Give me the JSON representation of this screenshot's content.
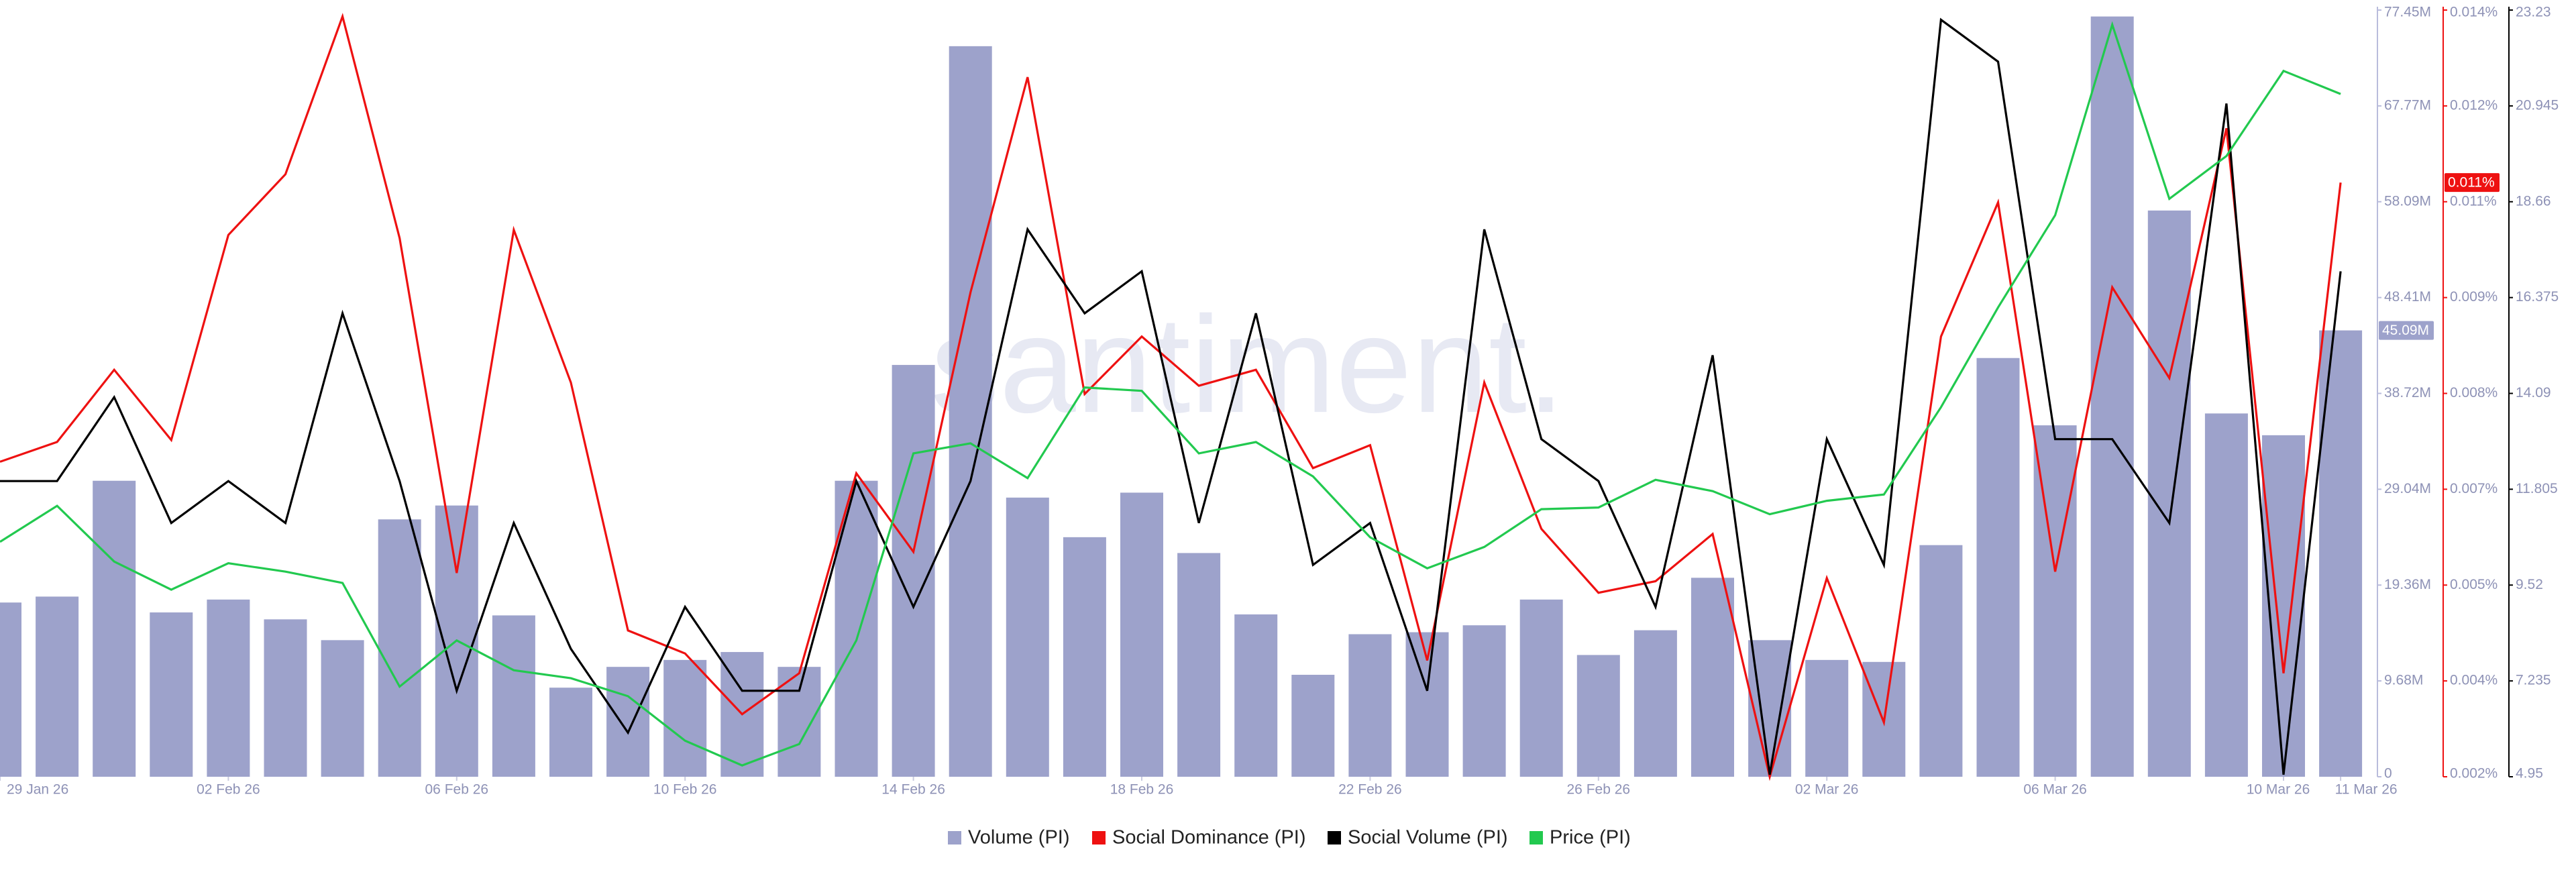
{
  "chart_data": {
    "type": "bar",
    "watermark": "santiment.",
    "x": [
      "2026-01-29",
      "2026-01-30",
      "2026-01-31",
      "2026-02-01",
      "2026-02-02",
      "2026-02-03",
      "2026-02-04",
      "2026-02-05",
      "2026-02-06",
      "2026-02-07",
      "2026-02-08",
      "2026-02-09",
      "2026-02-10",
      "2026-02-11",
      "2026-02-12",
      "2026-02-13",
      "2026-02-14",
      "2026-02-15",
      "2026-02-16",
      "2026-02-17",
      "2026-02-18",
      "2026-02-19",
      "2026-02-20",
      "2026-02-21",
      "2026-02-22",
      "2026-02-23",
      "2026-02-24",
      "2026-02-25",
      "2026-02-26",
      "2026-02-27",
      "2026-02-28",
      "2026-03-01",
      "2026-03-02",
      "2026-03-03",
      "2026-03-04",
      "2026-03-05",
      "2026-03-06",
      "2026-03-07",
      "2026-03-08",
      "2026-03-09",
      "2026-03-10",
      "2026-03-11"
    ],
    "xticks": [
      {
        "value": "2026-01-29",
        "label": "29 Jan 26"
      },
      {
        "value": "2026-02-02",
        "label": "02 Feb 26"
      },
      {
        "value": "2026-02-06",
        "label": "06 Feb 26"
      },
      {
        "value": "2026-02-10",
        "label": "10 Feb 26"
      },
      {
        "value": "2026-02-14",
        "label": "14 Feb 26"
      },
      {
        "value": "2026-02-18",
        "label": "18 Feb 26"
      },
      {
        "value": "2026-02-22",
        "label": "22 Feb 26"
      },
      {
        "value": "2026-02-26",
        "label": "26 Feb 26"
      },
      {
        "value": "2026-03-02",
        "label": "02 Mar 26"
      },
      {
        "value": "2026-03-06",
        "label": "06 Mar 26"
      },
      {
        "value": "2026-03-10",
        "label": "10 Mar 26"
      },
      {
        "value": "2026-03-11",
        "label": "11 Mar 26"
      }
    ],
    "ylim": [
      0,
      77450000
    ],
    "yticks": [
      0,
      {
        "value": 9681250,
        "label": "9.68M"
      },
      {
        "value": 19362500,
        "label": "19.36M"
      },
      {
        "value": 29043750,
        "label": "29.04M"
      },
      {
        "value": 38725000,
        "label": "38.72M"
      },
      {
        "value": 48406250,
        "label": "48.41M"
      },
      {
        "value": 58087500,
        "label": "58.09M"
      },
      {
        "value": 67768750,
        "label": "67.77M"
      },
      {
        "value": 77450000,
        "label": "77.45M"
      }
    ],
    "y2lim": [
      0.002,
      0.014
    ],
    "y2ticks": [
      {
        "value": 0.002,
        "label": "0.002%"
      },
      {
        "value": 0.0035,
        "label": "0.004%"
      },
      {
        "value": 0.005,
        "label": "0.005%"
      },
      {
        "value": 0.0065,
        "label": "0.007%"
      },
      {
        "value": 0.008,
        "label": "0.008%"
      },
      {
        "value": 0.0095,
        "label": "0.009%"
      },
      {
        "value": 0.011,
        "label": "0.011%"
      },
      {
        "value": 0.0125,
        "label": "0.012%"
      },
      {
        "value": 0.014,
        "label": "0.014%"
      }
    ],
    "y3lim": [
      4.95,
      23.23
    ],
    "y3ticks": [
      4.95,
      7.235,
      9.52,
      11.805,
      14.09,
      16.375,
      18.66,
      20.945,
      23.23
    ],
    "grid": false,
    "legend": "bottom",
    "series": [
      {
        "name": "Volume (PI)",
        "type": "bar",
        "axis": "y",
        "color": "#9da2cb",
        "values": [
          17600000,
          18200000,
          29900000,
          16600000,
          17900000,
          15900000,
          13800000,
          26000000,
          27400000,
          16300000,
          9000000,
          11100000,
          11800000,
          12600000,
          11100000,
          29900000,
          41600000,
          73800000,
          28200000,
          24200000,
          28700000,
          22600000,
          16400000,
          10300000,
          14400000,
          14600000,
          15300000,
          17900000,
          12300000,
          14800000,
          20100000,
          13800000,
          11800000,
          11600000,
          23400000,
          42300000,
          35500000,
          76800000,
          57200000,
          36700000,
          34500000,
          45090000
        ],
        "value_labels": [
          null,
          null,
          null,
          null,
          null,
          null,
          null,
          null,
          null,
          null,
          null,
          null,
          null,
          null,
          null,
          null,
          null,
          null,
          null,
          null,
          null,
          null,
          null,
          null,
          null,
          null,
          null,
          null,
          null,
          null,
          null,
          null,
          null,
          null,
          null,
          null,
          null,
          null,
          null,
          null,
          null,
          "45.09M"
        ]
      },
      {
        "name": "Social Dominance (PI)",
        "type": "line",
        "axis": "y2",
        "color": "#ee1111",
        "values": [
          0.00693,
          0.00724,
          0.00837,
          0.00727,
          0.01048,
          0.01143,
          0.0139,
          0.01043,
          0.00519,
          0.01056,
          0.00817,
          0.00429,
          0.00393,
          0.00298,
          0.00362,
          0.00675,
          0.00552,
          0.00958,
          0.01295,
          0.00799,
          0.00889,
          0.00812,
          0.00837,
          0.00683,
          0.00719,
          0.00382,
          0.00817,
          0.00588,
          0.00488,
          0.00506,
          0.0058,
          0.002,
          0.00511,
          0.00285,
          0.00889,
          0.01099,
          0.00521,
          0.00966,
          0.00824,
          0.01215,
          0.00362,
          0.0113
        ],
        "value_labels": [
          null,
          null,
          null,
          null,
          null,
          null,
          null,
          null,
          null,
          null,
          null,
          null,
          null,
          null,
          null,
          null,
          null,
          null,
          null,
          null,
          null,
          null,
          null,
          null,
          null,
          null,
          null,
          null,
          null,
          null,
          null,
          null,
          null,
          null,
          null,
          null,
          null,
          null,
          null,
          null,
          null,
          "0.011%"
        ]
      },
      {
        "name": "Social Volume (PI)",
        "type": "line",
        "axis": "y3",
        "color": "#000000",
        "values": [
          12,
          12,
          14,
          11,
          12,
          11,
          16,
          12,
          7,
          11,
          8,
          6,
          9,
          7,
          7,
          12,
          9,
          12,
          18,
          16,
          17,
          11,
          16,
          10,
          11,
          7,
          18,
          13,
          12,
          9,
          15,
          5,
          13,
          10,
          23,
          22,
          13,
          13,
          11,
          21,
          5,
          17
        ]
      },
      {
        "name": "Price (PI)",
        "type": "line",
        "axis": "y3",
        "color": "#22c94f",
        "values": [
          10.55,
          11.41,
          10.08,
          9.41,
          10.04,
          9.84,
          9.57,
          7.1,
          8.2,
          7.49,
          7.3,
          6.87,
          5.81,
          5.22,
          5.73,
          8.2,
          12.66,
          12.9,
          12.07,
          14.23,
          14.15,
          12.66,
          12.93,
          12.11,
          10.66,
          9.92,
          10.43,
          11.33,
          11.37,
          12.03,
          11.76,
          11.21,
          11.53,
          11.68,
          13.76,
          16.14,
          18.34,
          22.88,
          18.73,
          19.75,
          21.78,
          21.23
        ]
      }
    ]
  }
}
